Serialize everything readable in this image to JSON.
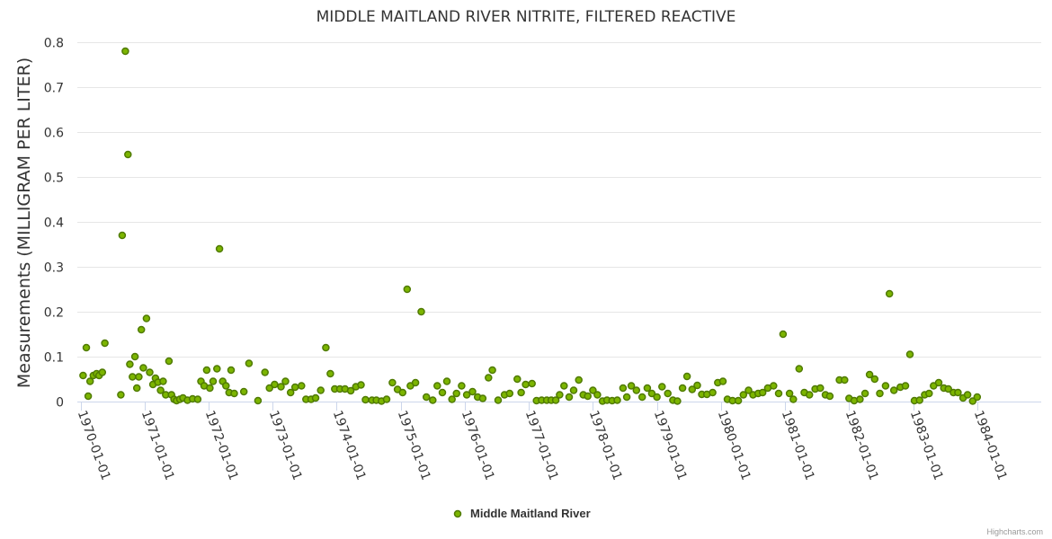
{
  "chart_data": {
    "type": "scatter",
    "title": "MIDDLE MAITLAND RIVER NITRITE, FILTERED REACTIVE",
    "ylabel": "Measurements (MILLIGRAM PER LITER)",
    "xlabel": "",
    "ylim": [
      0,
      0.8
    ],
    "yticks": [
      0,
      0.1,
      0.2,
      0.3,
      0.4,
      0.5,
      0.6,
      0.7,
      0.8
    ],
    "ytick_labels": [
      "0",
      "0.1",
      "0.2",
      "0.3",
      "0.4",
      "0.5",
      "0.6",
      "0.7",
      "0.8"
    ],
    "xlim": [
      1969.95,
      1985.0
    ],
    "xticks": [
      1970,
      1971,
      1972,
      1973,
      1974,
      1975,
      1976,
      1977,
      1978,
      1979,
      1980,
      1981,
      1982,
      1983,
      1984
    ],
    "xtick_labels": [
      "1970-01-01",
      "1971-01-01",
      "1972-01-01",
      "1973-01-01",
      "1974-01-01",
      "1975-01-01",
      "1976-01-01",
      "1977-01-01",
      "1978-01-01",
      "1979-01-01",
      "1980-01-01",
      "1981-01-01",
      "1982-01-01",
      "1983-01-01",
      "1984-01-01"
    ],
    "grid": true,
    "legend_position": "bottom-center",
    "colors": {
      "marker_fill": "#7cb500",
      "marker_stroke": "#4f7a00",
      "grid": "#e6e6e6",
      "axis": "#ccd6eb"
    },
    "series": [
      {
        "name": "Middle Maitland River",
        "points": [
          [
            1970.04,
            0.058
          ],
          [
            1970.09,
            0.12
          ],
          [
            1970.12,
            0.012
          ],
          [
            1970.15,
            0.045
          ],
          [
            1970.2,
            0.058
          ],
          [
            1970.25,
            0.062
          ],
          [
            1970.29,
            0.058
          ],
          [
            1970.34,
            0.065
          ],
          [
            1970.38,
            0.13
          ],
          [
            1970.63,
            0.015
          ],
          [
            1970.65,
            0.37
          ],
          [
            1970.7,
            0.78
          ],
          [
            1970.74,
            0.55
          ],
          [
            1970.77,
            0.083
          ],
          [
            1970.81,
            0.055
          ],
          [
            1970.85,
            0.1
          ],
          [
            1970.88,
            0.03
          ],
          [
            1970.91,
            0.055
          ],
          [
            1970.95,
            0.16
          ],
          [
            1970.98,
            0.075
          ],
          [
            1971.03,
            0.185
          ],
          [
            1971.08,
            0.065
          ],
          [
            1971.13,
            0.038
          ],
          [
            1971.17,
            0.052
          ],
          [
            1971.21,
            0.043
          ],
          [
            1971.25,
            0.025
          ],
          [
            1971.29,
            0.045
          ],
          [
            1971.33,
            0.015
          ],
          [
            1971.38,
            0.09
          ],
          [
            1971.42,
            0.015
          ],
          [
            1971.46,
            0.005
          ],
          [
            1971.5,
            0.002
          ],
          [
            1971.55,
            0.005
          ],
          [
            1971.6,
            0.008
          ],
          [
            1971.67,
            0.003
          ],
          [
            1971.75,
            0.006
          ],
          [
            1971.83,
            0.005
          ],
          [
            1971.88,
            0.045
          ],
          [
            1971.93,
            0.035
          ],
          [
            1971.97,
            0.07
          ],
          [
            1972.02,
            0.03
          ],
          [
            1972.07,
            0.045
          ],
          [
            1972.13,
            0.073
          ],
          [
            1972.17,
            0.34
          ],
          [
            1972.22,
            0.045
          ],
          [
            1972.27,
            0.035
          ],
          [
            1972.32,
            0.02
          ],
          [
            1972.35,
            0.07
          ],
          [
            1972.4,
            0.018
          ],
          [
            1972.55,
            0.022
          ],
          [
            1972.63,
            0.085
          ],
          [
            1972.77,
            0.002
          ],
          [
            1972.88,
            0.065
          ],
          [
            1972.95,
            0.03
          ],
          [
            1973.03,
            0.038
          ],
          [
            1973.13,
            0.033
          ],
          [
            1973.2,
            0.045
          ],
          [
            1973.28,
            0.02
          ],
          [
            1973.35,
            0.032
          ],
          [
            1973.45,
            0.035
          ],
          [
            1973.52,
            0.005
          ],
          [
            1973.6,
            0.005
          ],
          [
            1973.67,
            0.008
          ],
          [
            1973.75,
            0.025
          ],
          [
            1973.83,
            0.12
          ],
          [
            1973.9,
            0.062
          ],
          [
            1973.97,
            0.028
          ],
          [
            1974.05,
            0.028
          ],
          [
            1974.13,
            0.028
          ],
          [
            1974.22,
            0.024
          ],
          [
            1974.3,
            0.033
          ],
          [
            1974.38,
            0.037
          ],
          [
            1974.45,
            0.004
          ],
          [
            1974.55,
            0.003
          ],
          [
            1974.62,
            0.003
          ],
          [
            1974.7,
            0.001
          ],
          [
            1974.78,
            0.005
          ],
          [
            1974.87,
            0.042
          ],
          [
            1974.95,
            0.027
          ],
          [
            1975.03,
            0.02
          ],
          [
            1975.1,
            0.25
          ],
          [
            1975.15,
            0.035
          ],
          [
            1975.23,
            0.042
          ],
          [
            1975.32,
            0.2
          ],
          [
            1975.4,
            0.01
          ],
          [
            1975.5,
            0.003
          ],
          [
            1975.57,
            0.035
          ],
          [
            1975.65,
            0.02
          ],
          [
            1975.72,
            0.045
          ],
          [
            1975.8,
            0.005
          ],
          [
            1975.87,
            0.018
          ],
          [
            1975.95,
            0.035
          ],
          [
            1976.03,
            0.015
          ],
          [
            1976.12,
            0.022
          ],
          [
            1976.2,
            0.01
          ],
          [
            1976.28,
            0.007
          ],
          [
            1976.37,
            0.053
          ],
          [
            1976.43,
            0.07
          ],
          [
            1976.52,
            0.003
          ],
          [
            1976.62,
            0.015
          ],
          [
            1976.7,
            0.018
          ],
          [
            1976.82,
            0.05
          ],
          [
            1976.88,
            0.02
          ],
          [
            1976.95,
            0.038
          ],
          [
            1977.05,
            0.04
          ],
          [
            1977.12,
            0.002
          ],
          [
            1977.2,
            0.003
          ],
          [
            1977.28,
            0.003
          ],
          [
            1977.35,
            0.003
          ],
          [
            1977.42,
            0.003
          ],
          [
            1977.48,
            0.015
          ],
          [
            1977.55,
            0.035
          ],
          [
            1977.63,
            0.01
          ],
          [
            1977.7,
            0.025
          ],
          [
            1977.78,
            0.048
          ],
          [
            1977.85,
            0.015
          ],
          [
            1977.92,
            0.012
          ],
          [
            1978.0,
            0.025
          ],
          [
            1978.07,
            0.015
          ],
          [
            1978.15,
            0.001
          ],
          [
            1978.22,
            0.003
          ],
          [
            1978.3,
            0.002
          ],
          [
            1978.38,
            0.003
          ],
          [
            1978.47,
            0.03
          ],
          [
            1978.53,
            0.01
          ],
          [
            1978.6,
            0.035
          ],
          [
            1978.68,
            0.025
          ],
          [
            1978.77,
            0.01
          ],
          [
            1978.85,
            0.03
          ],
          [
            1978.92,
            0.018
          ],
          [
            1979.0,
            0.01
          ],
          [
            1979.08,
            0.033
          ],
          [
            1979.17,
            0.018
          ],
          [
            1979.25,
            0.003
          ],
          [
            1979.32,
            0.001
          ],
          [
            1979.4,
            0.03
          ],
          [
            1979.47,
            0.056
          ],
          [
            1979.55,
            0.027
          ],
          [
            1979.63,
            0.036
          ],
          [
            1979.7,
            0.016
          ],
          [
            1979.78,
            0.016
          ],
          [
            1979.87,
            0.02
          ],
          [
            1979.95,
            0.042
          ],
          [
            1980.03,
            0.045
          ],
          [
            1980.1,
            0.005
          ],
          [
            1980.18,
            0.002
          ],
          [
            1980.27,
            0.002
          ],
          [
            1980.35,
            0.015
          ],
          [
            1980.43,
            0.025
          ],
          [
            1980.5,
            0.015
          ],
          [
            1980.58,
            0.018
          ],
          [
            1980.65,
            0.02
          ],
          [
            1980.73,
            0.03
          ],
          [
            1980.82,
            0.035
          ],
          [
            1980.9,
            0.018
          ],
          [
            1980.97,
            0.15
          ],
          [
            1981.07,
            0.018
          ],
          [
            1981.13,
            0.005
          ],
          [
            1981.22,
            0.073
          ],
          [
            1981.3,
            0.02
          ],
          [
            1981.38,
            0.015
          ],
          [
            1981.47,
            0.028
          ],
          [
            1981.55,
            0.03
          ],
          [
            1981.63,
            0.015
          ],
          [
            1981.7,
            0.012
          ],
          [
            1981.85,
            0.048
          ],
          [
            1981.93,
            0.048
          ],
          [
            1982.0,
            0.007
          ],
          [
            1982.08,
            0.002
          ],
          [
            1982.17,
            0.005
          ],
          [
            1982.25,
            0.018
          ],
          [
            1982.32,
            0.06
          ],
          [
            1982.4,
            0.05
          ],
          [
            1982.48,
            0.018
          ],
          [
            1982.57,
            0.035
          ],
          [
            1982.63,
            0.24
          ],
          [
            1982.7,
            0.025
          ],
          [
            1982.8,
            0.032
          ],
          [
            1982.88,
            0.035
          ],
          [
            1982.95,
            0.105
          ],
          [
            1983.02,
            0.002
          ],
          [
            1983.1,
            0.003
          ],
          [
            1983.18,
            0.015
          ],
          [
            1983.25,
            0.018
          ],
          [
            1983.32,
            0.035
          ],
          [
            1983.4,
            0.042
          ],
          [
            1983.48,
            0.03
          ],
          [
            1983.55,
            0.028
          ],
          [
            1983.63,
            0.02
          ],
          [
            1983.7,
            0.02
          ],
          [
            1983.78,
            0.008
          ],
          [
            1983.85,
            0.015
          ],
          [
            1983.93,
            0.001
          ],
          [
            1984.0,
            0.01
          ]
        ]
      }
    ]
  },
  "credits": "Highcharts.com"
}
